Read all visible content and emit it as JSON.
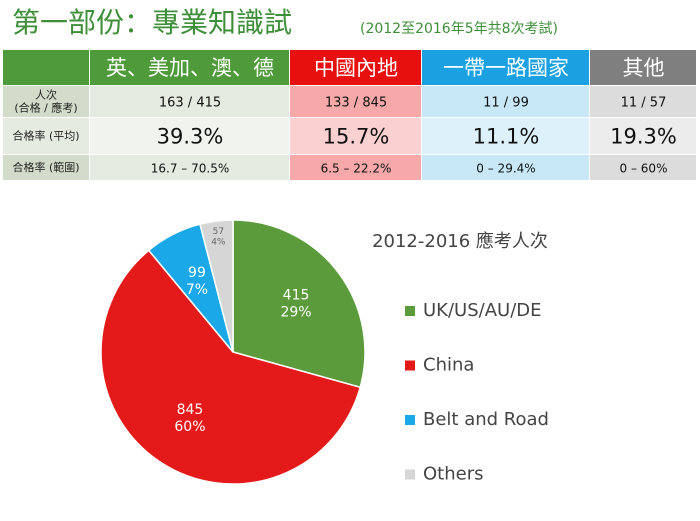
{
  "title": "第一部份：專業知識試",
  "subtitle": "(2012至2016年5年共8次考試)",
  "table": {
    "header": [
      "英、美加、澳、德",
      "中國內地",
      "一帶一路國家",
      "其他"
    ],
    "rows": [
      {
        "label": [
          "人次",
          "(合格 / 應考)"
        ],
        "cells": [
          "163 / 415",
          "133 / 845",
          "11 / 99",
          "11 / 57"
        ]
      },
      {
        "label": [
          "合格率 (平均)"
        ],
        "cells": [
          "39.3%",
          "15.7%",
          "11.1%",
          "19.3%"
        ]
      },
      {
        "label": [
          "合格率 (範圍)"
        ],
        "cells": [
          "16.7 – 70.5%",
          "6.5 – 22.2%",
          "0 – 29.4%",
          "0 – 60%"
        ]
      }
    ]
  },
  "chart_data": {
    "type": "pie",
    "title": "2012-2016 應考人次",
    "categories": [
      "UK/US/AU/DE",
      "China",
      "Belt and Road",
      "Others"
    ],
    "values": [
      415,
      845,
      99,
      57
    ],
    "percent_labels": [
      "29%",
      "60%",
      "7%",
      "4%"
    ],
    "colors": [
      "#5b9b3c",
      "#e41a1a",
      "#1aa8e8",
      "#d6d6d6"
    ]
  }
}
